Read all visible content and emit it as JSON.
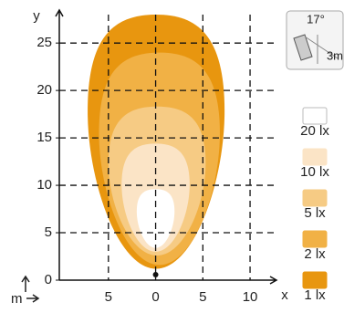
{
  "chart_data": {
    "type": "isolux",
    "x_label": "x",
    "y_label": "y",
    "unit_label": "m",
    "mount": {
      "angle": "17°",
      "height": "3m"
    },
    "xlim": [
      -10.2,
      12.7
    ],
    "ylim": [
      0,
      28
    ],
    "xticks": [
      {
        "value": -5,
        "label": "5"
      },
      0,
      5,
      10
    ],
    "yticks": [
      0,
      5,
      10,
      15,
      20,
      25
    ],
    "grid": true,
    "series": [
      {
        "name": "1 lx",
        "color": "#e8960f",
        "x_extent": [
          -7.2,
          7.3
        ],
        "y_extent": [
          1.2,
          28
        ]
      },
      {
        "name": "2 lx",
        "color": "#f1b145",
        "x_extent": [
          -6,
          6.8
        ],
        "y_extent": [
          1.6,
          24
        ]
      },
      {
        "name": "5 lx",
        "color": "#f6cb84",
        "x_extent": [
          -5,
          5.3
        ],
        "y_extent": [
          2.6,
          18.3
        ]
      },
      {
        "name": "10 lx",
        "color": "#fbe4c6",
        "x_extent": [
          -3.6,
          3.6
        ],
        "y_extent": [
          3,
          14.4
        ]
      },
      {
        "name": "20 lx",
        "color": "#ffffff",
        "x_extent": [
          -2,
          2
        ],
        "y_extent": [
          3.4,
          9.6
        ]
      }
    ]
  }
}
